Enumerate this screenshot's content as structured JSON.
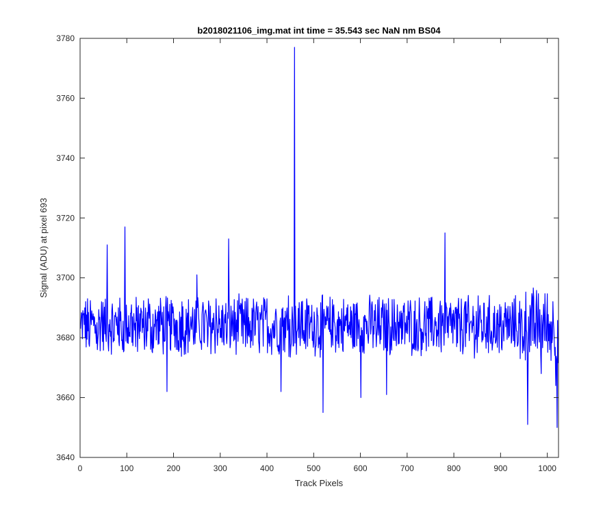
{
  "chart_data": {
    "type": "line",
    "title": "b2018021106_img.mat int time = 35.543 sec  NaN nm BS04",
    "xlabel": "Track Pixels",
    "ylabel": "Signal (ADU) at pixel 693",
    "xlim": [
      0,
      1024
    ],
    "ylim": [
      3640,
      3780
    ],
    "xticks": [
      "0",
      "100",
      "200",
      "300",
      "400",
      "500",
      "600",
      "700",
      "800",
      "900",
      "1000"
    ],
    "yticks": [
      "3640",
      "3660",
      "3680",
      "3700",
      "3720",
      "3740",
      "3760",
      "3780"
    ],
    "grid": false,
    "series_color": "#0000ff",
    "series": [
      {
        "x": [
          1,
          10,
          19,
          28,
          37,
          46,
          55,
          58,
          64,
          73,
          82,
          91,
          96,
          100,
          110,
          119,
          128,
          137,
          146,
          155,
          164,
          173,
          182,
          186,
          191,
          200,
          209,
          218,
          228,
          237,
          246,
          250,
          255,
          264,
          273,
          282,
          291,
          300,
          309,
          314,
          318,
          327,
          336,
          345,
          354,
          363,
          372,
          382,
          391,
          400,
          409,
          418,
          427,
          430,
          434,
          440,
          446,
          452,
          458,
          459,
          462,
          468,
          474,
          480,
          489,
          498,
          507,
          516,
          520,
          525,
          534,
          543,
          552,
          561,
          571,
          580,
          589,
          598,
          601,
          607,
          616,
          625,
          634,
          643,
          652,
          656,
          661,
          670,
          679,
          688,
          697,
          706,
          716,
          725,
          734,
          743,
          752,
          761,
          770,
          778,
          781,
          788,
          797,
          806,
          815,
          824,
          833,
          842,
          850,
          852,
          861,
          870,
          879,
          888,
          897,
          906,
          915,
          924,
          933,
          942,
          951,
          958,
          960,
          969,
          978,
          987,
          996,
          1005,
          1014,
          1018,
          1021,
          1024
        ],
        "y": [
          3683,
          3690,
          3678,
          3688,
          3676,
          3692,
          3681,
          3711,
          3686,
          3679,
          3690,
          3676,
          3717,
          3684,
          3691,
          3677,
          3688,
          3680,
          3693,
          3675,
          3686,
          3690,
          3679,
          3662,
          3684,
          3688,
          3676,
          3692,
          3681,
          3687,
          3678,
          3701,
          3684,
          3690,
          3677,
          3685,
          3693,
          3680,
          3686,
          3678,
          3713,
          3689,
          3682,
          3691,
          3677,
          3684,
          3690,
          3679,
          3686,
          3693,
          3680,
          3688,
          3676,
          3662,
          3690,
          3680,
          3694,
          3678,
          3690,
          3777,
          3685,
          3680,
          3692,
          3678,
          3688,
          3682,
          3690,
          3676,
          3655,
          3687,
          3682,
          3691,
          3678,
          3685,
          3690,
          3680,
          3688,
          3683,
          3660,
          3687,
          3680,
          3692,
          3677,
          3684,
          3689,
          3661,
          3686,
          3680,
          3691,
          3678,
          3684,
          3690,
          3676,
          3685,
          3681,
          3688,
          3679,
          3684,
          3690,
          3683,
          3715,
          3680,
          3688,
          3677,
          3685,
          3692,
          3679,
          3684,
          3675,
          3694,
          3682,
          3687,
          3678,
          3684,
          3675,
          3683,
          3688,
          3679,
          3685,
          3673,
          3681,
          3651,
          3687,
          3679,
          3684,
          3668,
          3686,
          3676,
          3683,
          3664,
          3650,
          3680
        ]
      }
    ]
  }
}
